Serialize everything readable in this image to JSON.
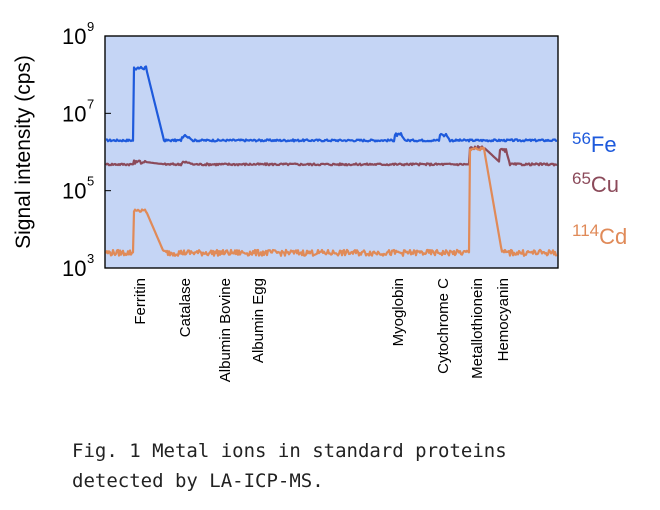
{
  "chart_data": {
    "type": "line",
    "ylabel": "Signal intensity (cps)",
    "yscale": "log",
    "ylim": [
      1000,
      1000000000
    ],
    "y_ticks": [
      {
        "base": "10",
        "exp": "3",
        "value": 1000
      },
      {
        "base": "10",
        "exp": "5",
        "value": 100000
      },
      {
        "base": "10",
        "exp": "7",
        "value": 10000000
      },
      {
        "base": "10",
        "exp": "9",
        "value": 1000000000
      }
    ],
    "background_color": "#c5d5f5",
    "grid": false,
    "x_categories": [
      "Ferritin",
      "Catalase",
      "Albumin Bovine",
      "Albumin Egg",
      "Myoglobin",
      "Cytochrome C",
      "Metallothionein",
      "Hemocyanin"
    ],
    "series": [
      {
        "name": "56Fe",
        "mass": "56",
        "element": "Fe",
        "color": "#1e5adc",
        "baseline": 2000000,
        "peaks": [
          {
            "protein": "Ferritin",
            "value": 150000000
          },
          {
            "protein": "Catalase",
            "value": 2600000
          },
          {
            "protein": "Myoglobin",
            "value": 2800000
          },
          {
            "protein": "Cytochrome C",
            "value": 2800000
          }
        ]
      },
      {
        "name": "65Cu",
        "mass": "65",
        "element": "Cu",
        "color": "#8b4a5a",
        "baseline": 480000,
        "peaks": [
          {
            "protein": "Ferritin",
            "value": 550000
          },
          {
            "protein": "Catalase",
            "value": 550000
          },
          {
            "protein": "Metallothionein",
            "value": 1300000
          },
          {
            "protein": "Hemocyanin",
            "value": 1100000
          }
        ]
      },
      {
        "name": "114Cd",
        "mass": "114",
        "element": "Cd",
        "color": "#e08a58",
        "baseline": 2500,
        "peaks": [
          {
            "protein": "Ferritin",
            "value": 30000
          },
          {
            "protein": "Metallothionein",
            "value": 1200000
          }
        ]
      }
    ]
  },
  "caption": {
    "line1": "Fig. 1 Metal ions in standard proteins",
    "line2": "detected by LA-ICP-MS."
  }
}
